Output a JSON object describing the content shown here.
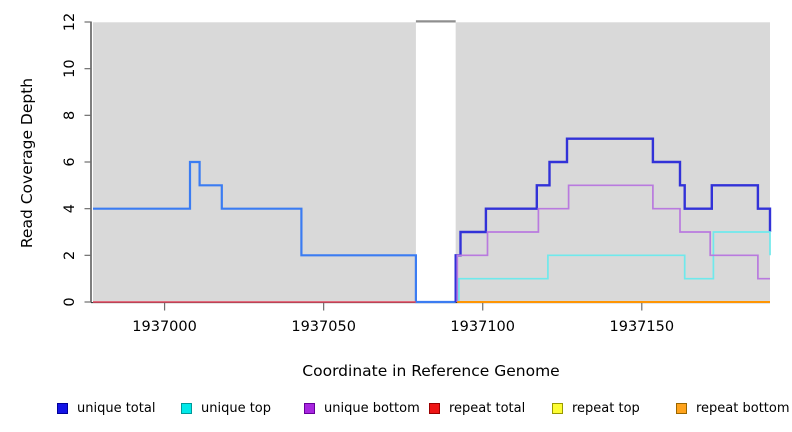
{
  "chart_data": {
    "type": "line",
    "step": true,
    "title": "",
    "xlabel": "Coordinate in Reference Genome",
    "ylabel": "Read Coverage Depth",
    "xlim": [
      1936977.5,
      1937190.3
    ],
    "ylim": [
      0,
      12
    ],
    "xticks": [
      1937000,
      1937050,
      1937100,
      1937150
    ],
    "yticks": [
      0,
      2,
      4,
      6,
      8,
      10,
      12
    ],
    "panel_color": "#d9d9d9",
    "background_regions": [
      {
        "from": 1936977.5,
        "to": 1937079,
        "color": "#d9d9d9"
      },
      {
        "from": 1937091.5,
        "to": 1937190.3,
        "color": "#d9d9d9"
      }
    ],
    "gap_region": {
      "from": 1937079,
      "to": 1937091.5
    },
    "gap_marker": {
      "from": 1937079,
      "to": 1937091.5,
      "y": 12,
      "color": "#8f8f8f"
    },
    "series": [
      {
        "id": "unique-total",
        "name": "unique total",
        "segments": [
          {
            "color": "#3b7cf2",
            "width": 2.2,
            "points": [
              [
                1936977.5,
                4
              ],
              [
                1937008,
                4
              ],
              [
                1937008,
                6
              ],
              [
                1937011,
                6
              ],
              [
                1937011,
                5
              ],
              [
                1937018,
                5
              ],
              [
                1937018,
                4
              ],
              [
                1937043,
                4
              ],
              [
                1937043,
                2
              ],
              [
                1937079,
                2
              ],
              [
                1937079,
                0
              ],
              [
                1937091.5,
                0
              ]
            ]
          },
          {
            "color": "#3232d8",
            "width": 2.4,
            "points": [
              [
                1937091.5,
                0
              ],
              [
                1937091.5,
                2
              ],
              [
                1937093,
                2
              ],
              [
                1937093,
                3
              ],
              [
                1937101,
                3
              ],
              [
                1937101,
                4
              ],
              [
                1937117,
                4
              ],
              [
                1937117,
                5
              ],
              [
                1937121,
                5
              ],
              [
                1937121,
                6
              ],
              [
                1937126.5,
                6
              ],
              [
                1937126.5,
                7
              ],
              [
                1937153.5,
                7
              ],
              [
                1937153.5,
                6
              ],
              [
                1937162,
                6
              ],
              [
                1937162,
                5
              ],
              [
                1937163.5,
                5
              ],
              [
                1937163.5,
                4
              ],
              [
                1937172,
                4
              ],
              [
                1937172,
                5
              ],
              [
                1937186.5,
                5
              ],
              [
                1937186.5,
                4
              ],
              [
                1937190.3,
                4
              ],
              [
                1937190.3,
                3
              ]
            ]
          }
        ]
      },
      {
        "id": "unique-top",
        "name": "unique top",
        "color": "#6fe9ec",
        "width": 1.7,
        "points": [
          [
            1937092.5,
            0
          ],
          [
            1937092.5,
            1
          ],
          [
            1937120.5,
            1
          ],
          [
            1937120.5,
            2
          ],
          [
            1937163.5,
            2
          ],
          [
            1937163.5,
            1
          ],
          [
            1937172.5,
            1
          ],
          [
            1937172.5,
            3
          ],
          [
            1937190.3,
            3
          ],
          [
            1937190.3,
            2
          ]
        ]
      },
      {
        "id": "unique-bottom",
        "name": "unique bottom",
        "color": "#b97ade",
        "width": 1.7,
        "points": [
          [
            1937092,
            0
          ],
          [
            1937092,
            2
          ],
          [
            1937101.5,
            2
          ],
          [
            1937101.5,
            3
          ],
          [
            1937117.5,
            3
          ],
          [
            1937117.5,
            4
          ],
          [
            1937127,
            4
          ],
          [
            1937127,
            5
          ],
          [
            1937153.5,
            5
          ],
          [
            1937153.5,
            4
          ],
          [
            1937162,
            4
          ],
          [
            1937162,
            3
          ],
          [
            1937171.5,
            3
          ],
          [
            1937171.5,
            2
          ],
          [
            1937186.5,
            2
          ],
          [
            1937186.5,
            1
          ],
          [
            1937190.3,
            1
          ]
        ]
      },
      {
        "id": "repeat-total",
        "name": "repeat total",
        "color": "#e4485f",
        "width": 1.6,
        "points": [
          [
            1936977.5,
            0
          ],
          [
            1937079,
            0
          ]
        ]
      },
      {
        "id": "repeat-top",
        "name": "repeat top",
        "color": "#f2e73c",
        "width": 1.6,
        "points": [
          [
            1937092,
            0
          ],
          [
            1937190.3,
            0
          ]
        ]
      },
      {
        "id": "repeat-bottom",
        "name": "repeat bottom",
        "color": "#ff9503",
        "width": 1.9,
        "points": [
          [
            1937092,
            0
          ],
          [
            1937190.3,
            0
          ]
        ]
      }
    ],
    "legend": [
      {
        "label": "unique total",
        "fill": "#1414e6",
        "border": "#000099"
      },
      {
        "label": "unique top",
        "fill": "#00e8e8",
        "border": "#009999"
      },
      {
        "label": "unique bottom",
        "fill": "#a826e0",
        "border": "#660099"
      },
      {
        "label": "repeat total",
        "fill": "#ee1515",
        "border": "#990000"
      },
      {
        "label": "repeat top",
        "fill": "#fdfd33",
        "border": "#999900"
      },
      {
        "label": "repeat bottom",
        "fill": "#ffa31c",
        "border": "#996600"
      }
    ],
    "legend_position": "bottom",
    "grid": false
  }
}
